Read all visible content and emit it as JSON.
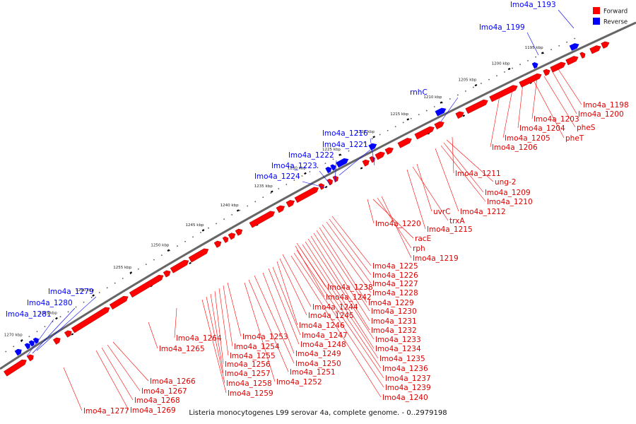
{
  "caption": "Listeria monocytogenes L99 serovar 4a, complete genome. - 0..2979198",
  "legend": [
    {
      "label": "Forward",
      "color": "#ff0000"
    },
    {
      "label": "Reverse",
      "color": "#0000ff"
    }
  ],
  "colors": {
    "forward": "#ff0000",
    "reverse": "#0000ff",
    "backbone": "#666666"
  },
  "ticks": [
    {
      "label": "1195 kbp"
    },
    {
      "label": "1200 kbp"
    },
    {
      "label": "1205 kbp"
    },
    {
      "label": "1210 kbp"
    },
    {
      "label": "1215 kbp"
    },
    {
      "label": "1220 kbp"
    },
    {
      "label": "1225 kbp"
    },
    {
      "label": "1230 kbp"
    },
    {
      "label": "1235 kbp"
    },
    {
      "label": "1240 kbp"
    },
    {
      "label": "1245 kbp"
    },
    {
      "label": "1250 kbp"
    },
    {
      "label": "1255 kbp"
    },
    {
      "label": "1260 kbp"
    },
    {
      "label": "1265 kbp"
    },
    {
      "label": "1270 kbp"
    }
  ],
  "reverse_genes": [
    {
      "label": "lmo4a_1193"
    },
    {
      "label": "lmo4a_1199"
    },
    {
      "label": "rnhC"
    },
    {
      "label": "lmo4a_1216"
    },
    {
      "label": "lmo4a_1221"
    },
    {
      "label": "lmo4a_1222"
    },
    {
      "label": "lmo4a_1223"
    },
    {
      "label": "lmo4a_1224"
    },
    {
      "label": "lmo4a_1279"
    },
    {
      "label": "lmo4a_1280"
    },
    {
      "label": "lmo4a_1281"
    }
  ],
  "forward_genes": [
    {
      "label": "lmo4a_1198"
    },
    {
      "label": "lmo4a_1200"
    },
    {
      "label": "pheS"
    },
    {
      "label": "lmo4a_1203"
    },
    {
      "label": "pheT"
    },
    {
      "label": "lmo4a_1204"
    },
    {
      "label": "lmo4a_1205"
    },
    {
      "label": "lmo4a_1206"
    },
    {
      "label": "lmo4a_1211"
    },
    {
      "label": "ung-2"
    },
    {
      "label": "lmo4a_1209"
    },
    {
      "label": "lmo4a_1210"
    },
    {
      "label": "lmo4a_1212"
    },
    {
      "label": "uvrC"
    },
    {
      "label": "trxA"
    },
    {
      "label": "lmo4a_1215"
    },
    {
      "label": "lmo4a_1220"
    },
    {
      "label": "racE"
    },
    {
      "label": "rph"
    },
    {
      "label": "lmo4a_1219"
    },
    {
      "label": "lmo4a_1225"
    },
    {
      "label": "lmo4a_1226"
    },
    {
      "label": "lmo4a_1227"
    },
    {
      "label": "lmo4a_1228"
    },
    {
      "label": "lmo4a_1229"
    },
    {
      "label": "lmo4a_1230"
    },
    {
      "label": "lmo4a_1231"
    },
    {
      "label": "lmo4a_1232"
    },
    {
      "label": "lmo4a_1233"
    },
    {
      "label": "lmo4a_1234"
    },
    {
      "label": "lmo4a_1235"
    },
    {
      "label": "lmo4a_1236"
    },
    {
      "label": "lmo4a_1237"
    },
    {
      "label": "lmo4a_1239"
    },
    {
      "label": "lmo4a_1240"
    },
    {
      "label": "lmo4a_1238"
    },
    {
      "label": "lmo4a_1242"
    },
    {
      "label": "lmo4a_1244"
    },
    {
      "label": "lmo4a_1245"
    },
    {
      "label": "lmo4a_1246"
    },
    {
      "label": "lmo4a_1247"
    },
    {
      "label": "lmo4a_1248"
    },
    {
      "label": "lmo4a_1249"
    },
    {
      "label": "lmo4a_1250"
    },
    {
      "label": "lmo4a_1251"
    },
    {
      "label": "lmo4a_1252"
    },
    {
      "label": "lmo4a_1253"
    },
    {
      "label": "lmo4a_1254"
    },
    {
      "label": "lmo4a_1255"
    },
    {
      "label": "lmo4a_1256"
    },
    {
      "label": "lmo4a_1257"
    },
    {
      "label": "lmo4a_1258"
    },
    {
      "label": "lmo4a_1259"
    },
    {
      "label": "lmo4a_1264"
    },
    {
      "label": "lmo4a_1265"
    },
    {
      "label": "lmo4a_1266"
    },
    {
      "label": "lmo4a_1267"
    },
    {
      "label": "lmo4a_1268"
    },
    {
      "label": "lmo4a_1269"
    },
    {
      "label": "lmo4a_1277"
    }
  ]
}
